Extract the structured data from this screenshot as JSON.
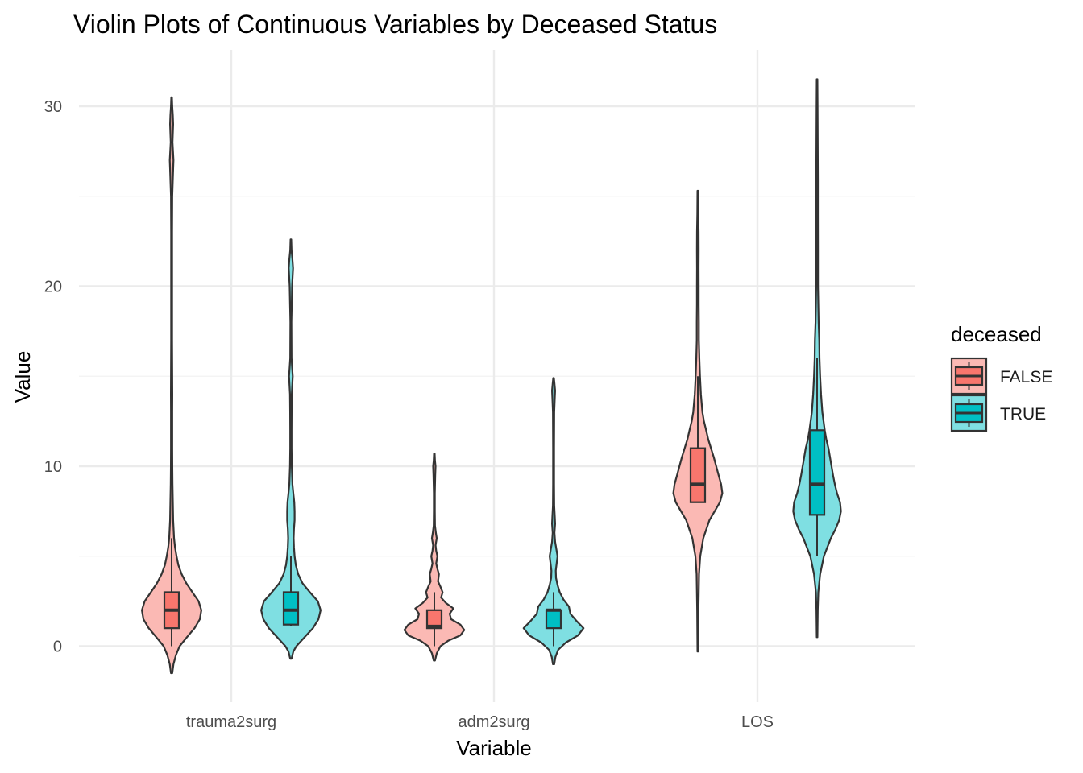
{
  "chart_data": {
    "type": "violin",
    "title": "Violin Plots of Continuous Variables by Deceased Status",
    "xlabel": "Variable",
    "ylabel": "Value",
    "ylim": [
      -3,
      33
    ],
    "yticks": [
      0,
      10,
      20,
      30
    ],
    "categories": [
      "trauma2surg",
      "adm2surg",
      "LOS"
    ],
    "grid": true,
    "legend": {
      "title": "deceased",
      "position": "right",
      "entries": [
        {
          "label": "FALSE",
          "fill": "#F8766D",
          "violin_fill": "#FBB9B4"
        },
        {
          "label": "TRUE",
          "fill": "#00BFC4",
          "violin_fill": "#7FDFE2"
        }
      ]
    },
    "groups": [
      {
        "category": "trauma2surg",
        "group": "FALSE",
        "min": -1.5,
        "max": 30.5,
        "box": {
          "q1": 1,
          "median": 2,
          "q3": 3,
          "whisker_low": 0,
          "whisker_high": 6
        },
        "density": [
          [
            -1.5,
            0.02
          ],
          [
            -1,
            0.06
          ],
          [
            -0.5,
            0.14
          ],
          [
            0,
            0.26
          ],
          [
            0.5,
            0.5
          ],
          [
            1,
            0.75
          ],
          [
            1.5,
            0.92
          ],
          [
            2,
            0.97
          ],
          [
            2.5,
            0.88
          ],
          [
            3,
            0.68
          ],
          [
            3.5,
            0.48
          ],
          [
            4,
            0.33
          ],
          [
            4.5,
            0.22
          ],
          [
            5,
            0.16
          ],
          [
            5.5,
            0.11
          ],
          [
            6,
            0.08
          ],
          [
            7,
            0.05
          ],
          [
            8,
            0.04
          ],
          [
            9,
            0.03
          ],
          [
            10,
            0.025
          ],
          [
            11,
            0.02
          ],
          [
            12,
            0.02
          ],
          [
            13,
            0.02
          ],
          [
            14,
            0.025
          ],
          [
            15,
            0.02
          ],
          [
            17,
            0.015
          ],
          [
            20,
            0.015
          ],
          [
            23,
            0.015
          ],
          [
            25,
            0.02
          ],
          [
            26.5,
            0.05
          ],
          [
            27,
            0.06
          ],
          [
            27.5,
            0.045
          ],
          [
            28,
            0.03
          ],
          [
            29,
            0.05
          ],
          [
            29.5,
            0.04
          ],
          [
            30,
            0.02
          ],
          [
            30.5,
            0.01
          ]
        ]
      },
      {
        "category": "trauma2surg",
        "group": "TRUE",
        "min": -0.7,
        "max": 22.6,
        "box": {
          "q1": 1.2,
          "median": 2,
          "q3": 3,
          "whisker_low": 1.1,
          "whisker_high": 5
        },
        "density": [
          [
            -0.7,
            0.02
          ],
          [
            -0.3,
            0.08
          ],
          [
            0,
            0.18
          ],
          [
            0.5,
            0.45
          ],
          [
            1,
            0.72
          ],
          [
            1.5,
            0.9
          ],
          [
            2,
            0.97
          ],
          [
            2.5,
            0.88
          ],
          [
            3,
            0.62
          ],
          [
            3.5,
            0.38
          ],
          [
            4,
            0.24
          ],
          [
            4.5,
            0.16
          ],
          [
            5,
            0.12
          ],
          [
            5.5,
            0.1
          ],
          [
            6,
            0.09
          ],
          [
            6.5,
            0.1
          ],
          [
            7,
            0.12
          ],
          [
            7.5,
            0.12
          ],
          [
            8,
            0.11
          ],
          [
            8.5,
            0.08
          ],
          [
            9,
            0.05
          ],
          [
            10,
            0.03
          ],
          [
            11,
            0.02
          ],
          [
            12,
            0.02
          ],
          [
            13,
            0.025
          ],
          [
            14,
            0.03
          ],
          [
            15,
            0.06
          ],
          [
            15.5,
            0.04
          ],
          [
            16,
            0.02
          ],
          [
            18,
            0.015
          ],
          [
            20,
            0.04
          ],
          [
            21,
            0.07
          ],
          [
            21.5,
            0.05
          ],
          [
            22,
            0.02
          ],
          [
            22.6,
            0.01
          ]
        ]
      },
      {
        "category": "adm2surg",
        "group": "FALSE",
        "min": -0.8,
        "max": 10.7,
        "box": {
          "q1": 1,
          "median": 1.1,
          "q3": 2,
          "whisker_low": 0,
          "whisker_high": 3
        },
        "density": [
          [
            -0.8,
            0.02
          ],
          [
            -0.4,
            0.08
          ],
          [
            0,
            0.2
          ],
          [
            0.3,
            0.45
          ],
          [
            0.6,
            0.85
          ],
          [
            0.9,
            0.98
          ],
          [
            1.2,
            0.85
          ],
          [
            1.5,
            0.55
          ],
          [
            1.8,
            0.5
          ],
          [
            2.1,
            0.62
          ],
          [
            2.4,
            0.38
          ],
          [
            2.7,
            0.22
          ],
          [
            3,
            0.27
          ],
          [
            3.3,
            0.2
          ],
          [
            3.6,
            0.12
          ],
          [
            4,
            0.15
          ],
          [
            4.3,
            0.1
          ],
          [
            4.6,
            0.06
          ],
          [
            5,
            0.1
          ],
          [
            5.3,
            0.06
          ],
          [
            5.6,
            0.04
          ],
          [
            6,
            0.08
          ],
          [
            6.3,
            0.05
          ],
          [
            6.7,
            0.02
          ],
          [
            7.5,
            0.015
          ],
          [
            8.5,
            0.015
          ],
          [
            9.5,
            0.03
          ],
          [
            10,
            0.04
          ],
          [
            10.3,
            0.02
          ],
          [
            10.7,
            0.01
          ]
        ]
      },
      {
        "category": "adm2surg",
        "group": "TRUE",
        "min": -1.0,
        "max": 14.9,
        "box": {
          "q1": 1,
          "median": 2,
          "q3": 2,
          "whisker_low": 0,
          "whisker_high": 3
        },
        "density": [
          [
            -1,
            0.02
          ],
          [
            -0.6,
            0.06
          ],
          [
            -0.2,
            0.15
          ],
          [
            0.2,
            0.4
          ],
          [
            0.6,
            0.8
          ],
          [
            1,
            0.98
          ],
          [
            1.4,
            0.75
          ],
          [
            1.8,
            0.55
          ],
          [
            2.2,
            0.5
          ],
          [
            2.6,
            0.32
          ],
          [
            3,
            0.2
          ],
          [
            3.4,
            0.13
          ],
          [
            3.8,
            0.08
          ],
          [
            4.2,
            0.07
          ],
          [
            4.6,
            0.1
          ],
          [
            5,
            0.13
          ],
          [
            5.4,
            0.09
          ],
          [
            5.8,
            0.05
          ],
          [
            6.3,
            0.03
          ],
          [
            6.8,
            0.05
          ],
          [
            7.2,
            0.04
          ],
          [
            7.8,
            0.02
          ],
          [
            9,
            0.015
          ],
          [
            11,
            0.015
          ],
          [
            13,
            0.02
          ],
          [
            13.8,
            0.04
          ],
          [
            14.2,
            0.05
          ],
          [
            14.6,
            0.03
          ],
          [
            14.9,
            0.01
          ]
        ]
      },
      {
        "category": "LOS",
        "group": "FALSE",
        "min": -0.3,
        "max": 25.3,
        "box": {
          "q1": 8,
          "median": 9,
          "q3": 11,
          "whisker_low": 8,
          "whisker_high": 15
        },
        "density": [
          [
            -0.3,
            0.01
          ],
          [
            2,
            0.02
          ],
          [
            4,
            0.04
          ],
          [
            5,
            0.08
          ],
          [
            6,
            0.18
          ],
          [
            7,
            0.38
          ],
          [
            7.5,
            0.55
          ],
          [
            8,
            0.72
          ],
          [
            8.5,
            0.8
          ],
          [
            9,
            0.76
          ],
          [
            9.5,
            0.68
          ],
          [
            10,
            0.6
          ],
          [
            10.5,
            0.52
          ],
          [
            11,
            0.43
          ],
          [
            11.5,
            0.34
          ],
          [
            12,
            0.27
          ],
          [
            12.5,
            0.2
          ],
          [
            13,
            0.15
          ],
          [
            14,
            0.1
          ],
          [
            15,
            0.07
          ],
          [
            16,
            0.05
          ],
          [
            17,
            0.035
          ],
          [
            18,
            0.035
          ],
          [
            19,
            0.03
          ],
          [
            20,
            0.03
          ],
          [
            21,
            0.025
          ],
          [
            22,
            0.03
          ],
          [
            23,
            0.025
          ],
          [
            24,
            0.015
          ],
          [
            25.3,
            0.01
          ]
        ]
      },
      {
        "category": "LOS",
        "group": "TRUE",
        "min": 0.5,
        "max": 31.5,
        "box": {
          "q1": 7.3,
          "median": 9,
          "q3": 12,
          "whisker_low": 5,
          "whisker_high": 16
        },
        "density": [
          [
            0.5,
            0.01
          ],
          [
            2,
            0.02
          ],
          [
            3,
            0.04
          ],
          [
            4,
            0.1
          ],
          [
            5,
            0.22
          ],
          [
            6,
            0.45
          ],
          [
            6.5,
            0.6
          ],
          [
            7,
            0.72
          ],
          [
            7.5,
            0.78
          ],
          [
            8,
            0.75
          ],
          [
            8.5,
            0.65
          ],
          [
            9,
            0.58
          ],
          [
            9.5,
            0.52
          ],
          [
            10,
            0.47
          ],
          [
            10.5,
            0.42
          ],
          [
            11,
            0.37
          ],
          [
            11.5,
            0.3
          ],
          [
            12,
            0.25
          ],
          [
            13,
            0.17
          ],
          [
            14,
            0.13
          ],
          [
            15,
            0.1
          ],
          [
            16,
            0.08
          ],
          [
            17,
            0.07
          ],
          [
            18,
            0.05
          ],
          [
            19,
            0.04
          ],
          [
            20,
            0.03
          ],
          [
            22,
            0.03
          ],
          [
            24,
            0.025
          ],
          [
            26,
            0.025
          ],
          [
            28,
            0.02
          ],
          [
            30,
            0.015
          ],
          [
            31.5,
            0.01
          ]
        ]
      }
    ]
  }
}
